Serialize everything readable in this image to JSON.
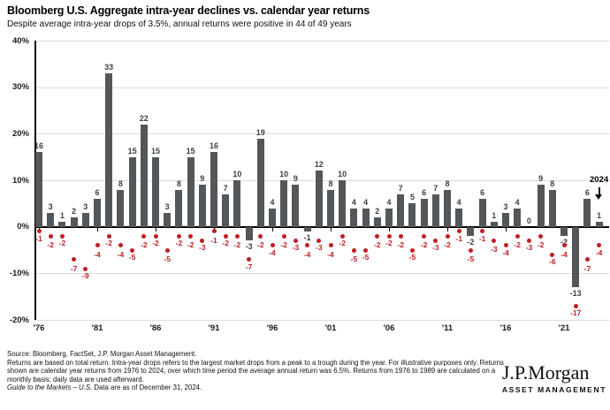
{
  "header": {
    "title": "Bloomberg U.S. Aggregate intra-year declines vs. calendar year returns",
    "subtitle": "Despite average intra-year drops of 3.5%, annual returns were positive in 44 of 49 years"
  },
  "chart_data": {
    "type": "bar",
    "title": "Bloomberg U.S. Aggregate intra-year declines vs. calendar year returns",
    "years": [
      1976,
      1977,
      1978,
      1979,
      1980,
      1981,
      1982,
      1983,
      1984,
      1985,
      1986,
      1987,
      1988,
      1989,
      1990,
      1991,
      1992,
      1993,
      1994,
      1995,
      1996,
      1997,
      1998,
      1999,
      2000,
      2001,
      2002,
      2003,
      2004,
      2005,
      2006,
      2007,
      2008,
      2009,
      2010,
      2011,
      2012,
      2013,
      2014,
      2015,
      2016,
      2017,
      2018,
      2019,
      2020,
      2021,
      2022,
      2023,
      2024
    ],
    "series": [
      {
        "name": "Calendar year returns",
        "type": "bar",
        "color": "#53575a",
        "values": [
          16,
          3,
          1,
          2,
          3,
          6,
          33,
          8,
          15,
          22,
          15,
          3,
          8,
          15,
          9,
          16,
          7,
          10,
          -3,
          19,
          4,
          10,
          9,
          -1,
          12,
          8,
          10,
          4,
          4,
          2,
          4,
          7,
          5,
          6,
          7,
          8,
          4,
          -2,
          6,
          1,
          3,
          4,
          0,
          9,
          8,
          -2,
          -13,
          6,
          1
        ]
      },
      {
        "name": "Intra-year declines",
        "type": "scatter",
        "color": "#bf1e24",
        "values": [
          -1,
          -2,
          -2,
          -7,
          -9,
          -4,
          -2,
          -4,
          -5,
          -2,
          -2,
          -5,
          -2,
          -2,
          -3,
          -1,
          -2,
          -2,
          -7,
          -2,
          -4,
          -2,
          -3,
          -4,
          -3,
          -4,
          -2,
          -5,
          -5,
          -2,
          -2,
          -2,
          -5,
          -2,
          -3,
          -2,
          -1,
          -5,
          -1,
          -3,
          -4,
          -2,
          -3,
          -2,
          -6,
          -4,
          -17,
          -7,
          -4
        ]
      }
    ],
    "annotation": {
      "label": "2024",
      "icon": "down-arrow",
      "year": 2024
    },
    "y_axis": {
      "labels": [
        "40%",
        "30%",
        "20%",
        "10%",
        "0%",
        "-10%",
        "-20%"
      ],
      "values": [
        40,
        30,
        20,
        10,
        0,
        -10,
        -20
      ],
      "min": -20,
      "max": 40,
      "grid": true
    },
    "x_axis": {
      "labels": [
        "'76",
        "'81",
        "'86",
        "'91",
        "'96",
        "'01",
        "'06",
        "'11",
        "'16",
        "'21"
      ],
      "years": [
        1976,
        1981,
        1986,
        1991,
        1996,
        2001,
        2006,
        2011,
        2016,
        2021
      ]
    }
  },
  "footer": {
    "source_line": "Source: Bloomberg, FactSet, J.P. Morgan Asset Management.",
    "note_line": "Returns are based on total return. Intra-year drops refers to the largest market drops from a peak to a trough during the year. For illustrative purposes only. Returns shown are calendar year returns from 1976 to 2024, over which time period the average annual return was 6.5%. Returns from 1976 to 1989 are calculated on a monthly basis; daily data are used afterward.",
    "gtm_italic": "Guide to the Markets – U.S.",
    "gtm_rest": " Data are as of December 31, 2024."
  },
  "logo": {
    "brand": "J.P.Morgan",
    "division": "ASSET MANAGEMENT"
  }
}
